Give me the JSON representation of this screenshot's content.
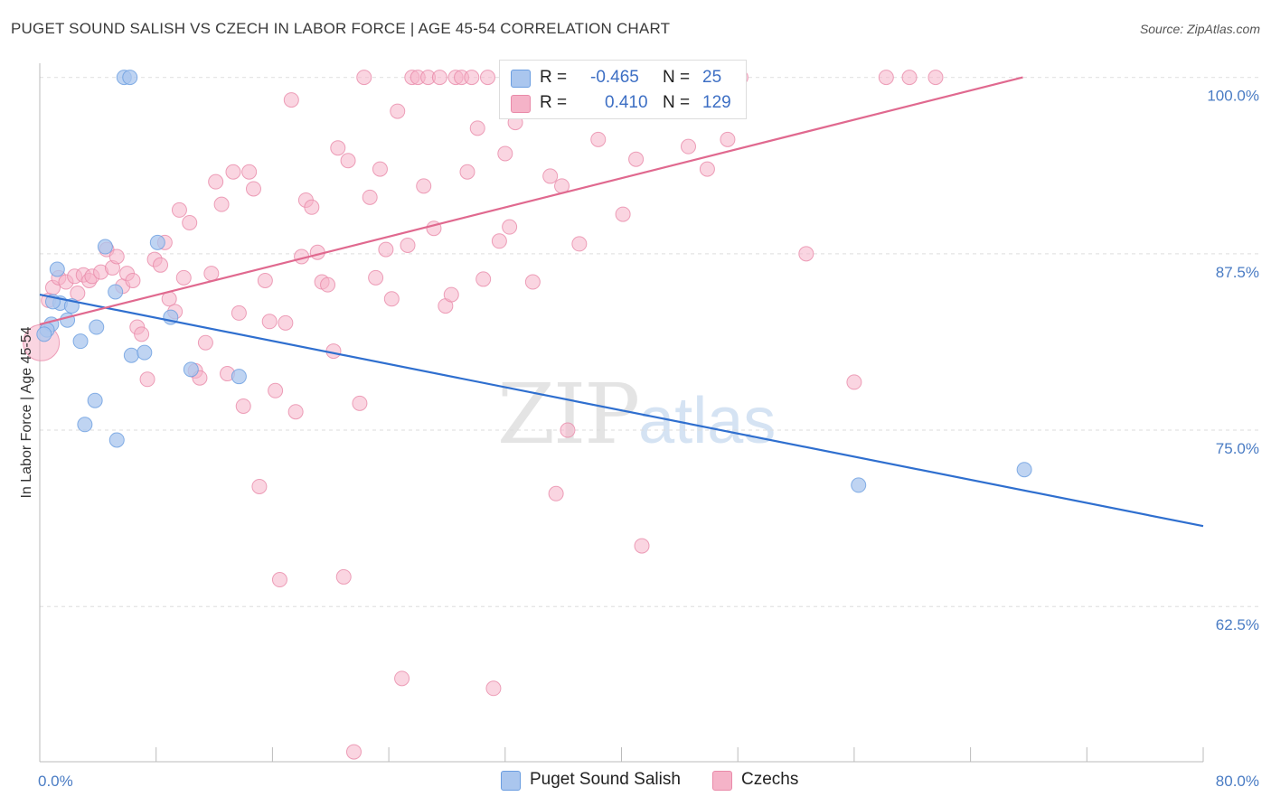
{
  "title": "PUGET SOUND SALISH VS CZECH IN LABOR FORCE | AGE 45-54 CORRELATION CHART",
  "source": "Source: ZipAtlas.com",
  "watermark": {
    "zip": "ZIP",
    "atlas": "atlas"
  },
  "legend_top": [
    {
      "r_label": "R =",
      "r_value": "-0.465",
      "n_label": "N =",
      "n_value": "25",
      "color": "#aac6ee"
    },
    {
      "r_label": "R =",
      "r_value": "0.410",
      "n_label": "N =",
      "n_value": "129",
      "color": "#f5b3c8"
    }
  ],
  "legend_bottom": [
    {
      "label": "Puget Sound Salish",
      "color": "#aac6ee"
    },
    {
      "label": "Czechs",
      "color": "#f5b3c8"
    }
  ],
  "chart_data": {
    "type": "scatter",
    "title": "PUGET SOUND SALISH VS CZECH IN LABOR FORCE | AGE 45-54 CORRELATION CHART",
    "xlabel": "",
    "ylabel": "In Labor Force | Age 45-54",
    "xlim": [
      0,
      80
    ],
    "ylim": [
      51.5,
      101
    ],
    "x_tick_labels": [
      "0.0%",
      "80.0%"
    ],
    "y_ticks": [
      62.5,
      75.0,
      87.5,
      100.0
    ],
    "y_tick_labels": [
      "62.5%",
      "75.0%",
      "87.5%",
      "100.0%"
    ],
    "grid": "horizontal dashed",
    "legend_position": "top-center",
    "series": [
      {
        "name": "Puget Sound Salish",
        "color": "#6a9de0",
        "fill": "#aac6ee",
        "trend": {
          "x": [
            0,
            80
          ],
          "y": [
            84.6,
            68.2
          ],
          "color": "#2f6fcf"
        },
        "points": [
          [
            5.8,
            100.0
          ],
          [
            6.2,
            100.0
          ],
          [
            1.2,
            86.4
          ],
          [
            4.5,
            88.0
          ],
          [
            8.1,
            88.3
          ],
          [
            1.4,
            84.0
          ],
          [
            2.2,
            83.8
          ],
          [
            0.9,
            84.1
          ],
          [
            1.9,
            82.8
          ],
          [
            0.8,
            82.5
          ],
          [
            0.5,
            82.1
          ],
          [
            3.9,
            82.3
          ],
          [
            5.2,
            84.8
          ],
          [
            9.0,
            83.0
          ],
          [
            2.8,
            81.3
          ],
          [
            6.3,
            80.3
          ],
          [
            7.2,
            80.5
          ],
          [
            10.4,
            79.3
          ],
          [
            13.7,
            78.8
          ],
          [
            3.8,
            77.1
          ],
          [
            3.1,
            75.4
          ],
          [
            5.3,
            74.3
          ],
          [
            56.3,
            71.1
          ],
          [
            67.7,
            72.2
          ],
          [
            0.3,
            81.8
          ]
        ]
      },
      {
        "name": "Czechs",
        "color": "#e98aa9",
        "fill": "#f5b3c8",
        "trend": {
          "x": [
            0,
            67.6
          ],
          "y": [
            82.5,
            100.0
          ],
          "color": "#e0698f"
        },
        "points": [
          [
            0.1,
            81.2
          ],
          [
            0.6,
            84.2
          ],
          [
            0.9,
            85.1
          ],
          [
            1.3,
            85.8
          ],
          [
            1.8,
            85.5
          ],
          [
            2.4,
            85.9
          ],
          [
            2.6,
            84.7
          ],
          [
            3.0,
            86.0
          ],
          [
            3.4,
            85.6
          ],
          [
            3.6,
            85.9
          ],
          [
            4.2,
            86.2
          ],
          [
            4.6,
            87.8
          ],
          [
            5.0,
            86.5
          ],
          [
            5.3,
            87.3
          ],
          [
            5.7,
            85.2
          ],
          [
            6.0,
            86.1
          ],
          [
            6.4,
            85.6
          ],
          [
            6.7,
            82.3
          ],
          [
            7.0,
            81.8
          ],
          [
            7.4,
            78.6
          ],
          [
            7.9,
            87.1
          ],
          [
            8.3,
            86.7
          ],
          [
            8.6,
            88.3
          ],
          [
            8.9,
            84.3
          ],
          [
            9.3,
            83.4
          ],
          [
            9.6,
            90.6
          ],
          [
            9.9,
            85.8
          ],
          [
            10.3,
            89.7
          ],
          [
            10.7,
            79.2
          ],
          [
            11.0,
            78.7
          ],
          [
            11.4,
            81.2
          ],
          [
            11.8,
            86.1
          ],
          [
            12.1,
            92.6
          ],
          [
            12.5,
            91.0
          ],
          [
            12.9,
            79.0
          ],
          [
            13.3,
            93.3
          ],
          [
            13.7,
            83.3
          ],
          [
            14.0,
            76.7
          ],
          [
            14.4,
            93.3
          ],
          [
            14.7,
            92.1
          ],
          [
            15.1,
            71.0
          ],
          [
            15.5,
            85.6
          ],
          [
            15.8,
            82.7
          ],
          [
            16.2,
            77.8
          ],
          [
            16.5,
            64.4
          ],
          [
            16.9,
            82.6
          ],
          [
            17.3,
            98.4
          ],
          [
            17.6,
            76.3
          ],
          [
            18.0,
            87.3
          ],
          [
            18.3,
            91.3
          ],
          [
            18.7,
            90.8
          ],
          [
            19.1,
            87.6
          ],
          [
            19.4,
            85.5
          ],
          [
            19.8,
            85.3
          ],
          [
            20.2,
            80.6
          ],
          [
            20.5,
            95.0
          ],
          [
            20.9,
            64.6
          ],
          [
            21.2,
            94.1
          ],
          [
            21.6,
            52.2
          ],
          [
            22.0,
            76.9
          ],
          [
            22.3,
            100.0
          ],
          [
            22.7,
            91.5
          ],
          [
            23.1,
            85.8
          ],
          [
            23.4,
            93.5
          ],
          [
            23.8,
            87.8
          ],
          [
            24.2,
            84.3
          ],
          [
            24.6,
            97.6
          ],
          [
            24.9,
            57.4
          ],
          [
            25.3,
            88.1
          ],
          [
            25.6,
            100.0
          ],
          [
            26.0,
            100.0
          ],
          [
            26.4,
            92.3
          ],
          [
            26.7,
            100.0
          ],
          [
            27.1,
            89.3
          ],
          [
            27.5,
            100.0
          ],
          [
            27.9,
            83.8
          ],
          [
            28.3,
            84.6
          ],
          [
            28.6,
            100.0
          ],
          [
            29.0,
            100.0
          ],
          [
            29.4,
            93.3
          ],
          [
            29.7,
            100.0
          ],
          [
            30.1,
            96.4
          ],
          [
            30.5,
            85.7
          ],
          [
            30.8,
            100.0
          ],
          [
            31.2,
            56.7
          ],
          [
            31.6,
            88.4
          ],
          [
            32.0,
            94.6
          ],
          [
            32.3,
            89.4
          ],
          [
            32.7,
            96.8
          ],
          [
            33.1,
            100.0
          ],
          [
            33.5,
            98.8
          ],
          [
            33.9,
            85.5
          ],
          [
            34.3,
            100.0
          ],
          [
            34.7,
            100.0
          ],
          [
            35.1,
            93.0
          ],
          [
            35.5,
            70.5
          ],
          [
            35.9,
            92.3
          ],
          [
            36.3,
            75.0
          ],
          [
            36.7,
            100.0
          ],
          [
            37.1,
            88.2
          ],
          [
            37.5,
            100.0
          ],
          [
            38.0,
            100.0
          ],
          [
            38.4,
            95.6
          ],
          [
            38.8,
            100.0
          ],
          [
            39.3,
            100.0
          ],
          [
            39.7,
            100.0
          ],
          [
            40.1,
            90.3
          ],
          [
            40.6,
            100.0
          ],
          [
            41.0,
            94.2
          ],
          [
            41.4,
            66.8
          ],
          [
            41.9,
            100.0
          ],
          [
            42.3,
            100.0
          ],
          [
            42.8,
            100.0
          ],
          [
            43.2,
            100.0
          ],
          [
            43.7,
            100.0
          ],
          [
            44.1,
            100.0
          ],
          [
            44.6,
            95.1
          ],
          [
            45.0,
            100.0
          ],
          [
            45.5,
            100.0
          ],
          [
            45.9,
            93.5
          ],
          [
            46.4,
            100.0
          ],
          [
            46.8,
            100.0
          ],
          [
            47.3,
            95.6
          ],
          [
            47.7,
            100.0
          ],
          [
            48.2,
            100.0
          ],
          [
            52.7,
            87.5
          ],
          [
            56.0,
            78.4
          ],
          [
            58.2,
            100.0
          ],
          [
            59.8,
            100.0
          ],
          [
            61.6,
            100.0
          ]
        ]
      }
    ]
  }
}
